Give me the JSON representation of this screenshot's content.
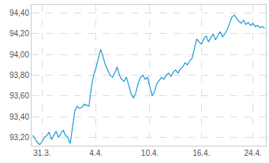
{
  "chart_data": {
    "type": "line",
    "categories": [
      null,
      null,
      null,
      null,
      "31.3.",
      null,
      null,
      null,
      null,
      null,
      null,
      null,
      null,
      null,
      null,
      null,
      null,
      null,
      null,
      null,
      null,
      null,
      null,
      null,
      null,
      null,
      null,
      "4.4.",
      null,
      null,
      null,
      null,
      null,
      null,
      null,
      null,
      null,
      null,
      null,
      null,
      null,
      null,
      null,
      null,
      null,
      null,
      null,
      null,
      null,
      null,
      "10.4.",
      null,
      null,
      null,
      null,
      null,
      null,
      null,
      null,
      null,
      null,
      null,
      null,
      null,
      null,
      null,
      null,
      null,
      null,
      null,
      null,
      null,
      "16.4.",
      null,
      null,
      null,
      null,
      null,
      null,
      null,
      null,
      null,
      null,
      null,
      null,
      null,
      null,
      null,
      null,
      null,
      null,
      null,
      null,
      null,
      "24.4.",
      null,
      null,
      null,
      null,
      null
    ],
    "values": [
      93.22,
      93.18,
      93.15,
      93.13,
      93.16,
      93.2,
      93.22,
      93.25,
      93.18,
      93.22,
      93.26,
      93.2,
      93.24,
      93.27,
      93.22,
      93.2,
      93.14,
      93.3,
      93.46,
      93.5,
      93.48,
      93.49,
      93.52,
      93.51,
      93.5,
      93.68,
      93.8,
      93.87,
      93.95,
      94.05,
      93.98,
      93.9,
      93.85,
      93.8,
      93.78,
      93.82,
      93.88,
      93.8,
      93.76,
      93.74,
      93.78,
      93.7,
      93.62,
      93.58,
      93.63,
      93.72,
      93.78,
      93.8,
      93.76,
      93.78,
      93.68,
      93.6,
      93.64,
      93.72,
      93.75,
      93.78,
      93.76,
      93.8,
      93.82,
      93.79,
      93.83,
      93.85,
      93.82,
      93.86,
      93.88,
      93.92,
      93.9,
      93.94,
      93.96,
      94.05,
      94.15,
      94.12,
      94.1,
      94.15,
      94.18,
      94.12,
      94.16,
      94.2,
      94.14,
      94.18,
      94.22,
      94.17,
      94.2,
      94.24,
      94.3,
      94.36,
      94.38,
      94.35,
      94.32,
      94.3,
      94.33,
      94.29,
      94.31,
      94.28,
      94.3,
      94.27,
      94.28,
      94.26,
      94.27,
      94.25
    ],
    "color": "#1e9ad6",
    "ylim": [
      93.12,
      94.48
    ],
    "yticks": [
      {
        "value": 93.2,
        "label": "93,20"
      },
      {
        "value": 93.4,
        "label": "93,40"
      },
      {
        "value": 93.6,
        "label": "93,60"
      },
      {
        "value": 93.8,
        "label": "93,80"
      },
      {
        "value": 94.0,
        "label": "94,00"
      },
      {
        "value": 94.2,
        "label": "94,20"
      },
      {
        "value": 94.4,
        "label": "94,40"
      }
    ],
    "grid": true
  }
}
